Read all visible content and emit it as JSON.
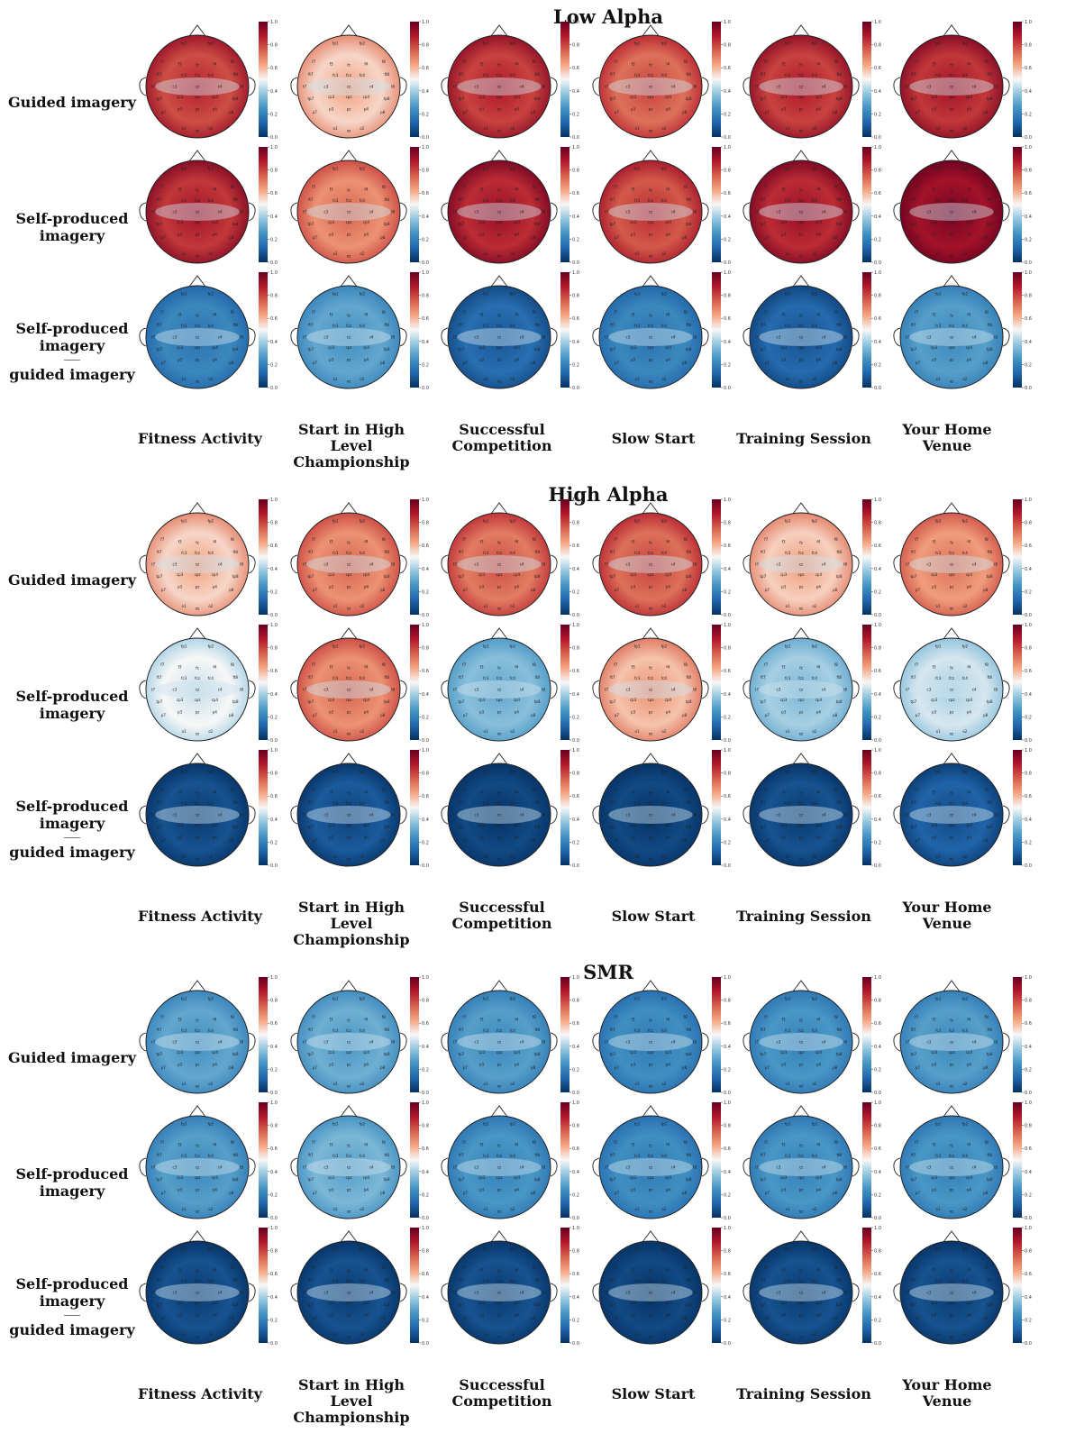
{
  "bands": [
    {
      "title": "Low Alpha",
      "maps": [
        [
          0.78,
          0.55,
          0.8,
          0.72,
          0.8,
          0.82
        ],
        [
          0.82,
          0.66,
          0.84,
          0.76,
          0.84,
          0.9
        ],
        [
          0.22,
          0.3,
          0.15,
          0.22,
          0.14,
          0.28
        ]
      ]
    },
    {
      "title": "High Alpha",
      "maps": [
        [
          0.55,
          0.66,
          0.7,
          0.72,
          0.56,
          0.64
        ],
        [
          0.5,
          0.66,
          0.36,
          0.58,
          0.4,
          0.46
        ],
        [
          0.08,
          0.1,
          0.06,
          0.06,
          0.08,
          0.12
        ]
      ]
    },
    {
      "title": "SMR",
      "maps": [
        [
          0.3,
          0.32,
          0.28,
          0.24,
          0.26,
          0.28
        ],
        [
          0.28,
          0.34,
          0.26,
          0.24,
          0.26,
          0.26
        ],
        [
          0.08,
          0.08,
          0.08,
          0.06,
          0.08,
          0.08
        ]
      ]
    }
  ],
  "row_labels": [
    {
      "line1": "Guided imagery",
      "line2": "",
      "line3": ""
    },
    {
      "line1": "Self-produced",
      "line2": "imagery",
      "line3": ""
    },
    {
      "line1": "Self-produced",
      "line2": "imagery",
      "line3": "guided imagery"
    }
  ],
  "conditions": [
    {
      "line1": "Fitness Activity",
      "line2": ""
    },
    {
      "line1": "Start in High Level",
      "line2": "Championship"
    },
    {
      "line1": "Successful",
      "line2": "Competition"
    },
    {
      "line1": "Slow Start",
      "line2": ""
    },
    {
      "line1": "Training Session",
      "line2": ""
    },
    {
      "line1": "Your Home",
      "line2": "Venue"
    }
  ],
  "colorbar": {
    "ticks": [
      "0.0",
      "0.2",
      "0.4",
      "0.6",
      "0.8",
      "1.0"
    ],
    "colormap": [
      "#053061",
      "#2166ac",
      "#4393c3",
      "#92c5de",
      "#f7f7f7",
      "#f4a582",
      "#d6604d",
      "#b2182b",
      "#67001f"
    ]
  },
  "electrodes": [
    "fp1",
    "fp2",
    "f7",
    "f3",
    "fz",
    "f4",
    "f8",
    "fc3",
    "fcz",
    "fc4",
    "t7",
    "c3",
    "cz",
    "c4",
    "t8",
    "cp3",
    "cpz",
    "cp4",
    "p7",
    "p3",
    "pz",
    "p4",
    "p8",
    "o1",
    "oz",
    "o2",
    "ft7",
    "ft8",
    "tp7",
    "tp8"
  ]
}
